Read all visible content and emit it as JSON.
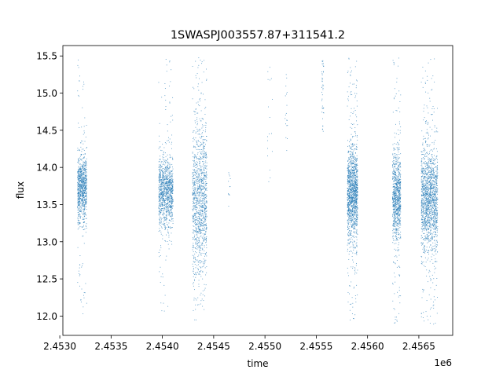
{
  "chart_data": {
    "type": "scatter",
    "title": "1SWASPJ003557.87+311541.2",
    "xlabel": "time",
    "ylabel": "flux",
    "x_offset_label": "1e6",
    "xlim": [
      2.45303,
      2.45683
    ],
    "ylim": [
      11.74,
      15.64
    ],
    "x_ticks": [
      2.453,
      2.4535,
      2.454,
      2.4545,
      2.455,
      2.4555,
      2.456,
      2.4565
    ],
    "x_tick_labels": [
      "2.4530",
      "2.4535",
      "2.4540",
      "2.4545",
      "2.4550",
      "2.4555",
      "2.4560",
      "2.4565"
    ],
    "y_ticks": [
      12.0,
      12.5,
      13.0,
      13.5,
      14.0,
      14.5,
      15.0,
      15.5
    ],
    "y_tick_labels": [
      "12.0",
      "12.5",
      "13.0",
      "13.5",
      "14.0",
      "14.5",
      "15.0",
      "15.5"
    ],
    "grid": false,
    "point_color": "#1f77b4",
    "clusters": [
      {
        "x_range": [
          2.45317,
          2.45326
        ],
        "y_center": 13.72,
        "y_spread": 0.22,
        "y_min": 11.96,
        "y_max": 15.48,
        "density": 900
      },
      {
        "x_range": [
          2.45396,
          2.4541
        ],
        "y_center": 13.68,
        "y_spread": 0.24,
        "y_min": 12.07,
        "y_max": 15.48,
        "density": 1100
      },
      {
        "x_range": [
          2.45429,
          2.45443
        ],
        "y_center": 13.55,
        "y_spread": 0.52,
        "y_min": 11.95,
        "y_max": 15.48,
        "density": 1200
      },
      {
        "x_range": [
          2.45464,
          2.45466
        ],
        "y_center": 13.75,
        "y_spread": 0.18,
        "y_min": 13.42,
        "y_max": 14.06,
        "density": 14
      },
      {
        "x_range": [
          2.45502,
          2.45507
        ],
        "y_center": 14.3,
        "y_spread": 0.9,
        "y_min": 13.68,
        "y_max": 15.45,
        "density": 30
      },
      {
        "x_range": [
          2.45519,
          2.45522
        ],
        "y_center": 14.8,
        "y_spread": 0.5,
        "y_min": 13.96,
        "y_max": 15.27,
        "density": 25
      },
      {
        "x_range": [
          2.45555,
          2.45557
        ],
        "y_center": 15.1,
        "y_spread": 0.22,
        "y_min": 14.48,
        "y_max": 15.48,
        "density": 45
      },
      {
        "x_range": [
          2.4558,
          2.4559
        ],
        "y_center": 13.65,
        "y_spread": 0.32,
        "y_min": 11.92,
        "y_max": 15.48,
        "density": 1400
      },
      {
        "x_range": [
          2.45624,
          2.45632
        ],
        "y_center": 13.62,
        "y_spread": 0.3,
        "y_min": 11.9,
        "y_max": 15.48,
        "density": 900
      },
      {
        "x_range": [
          2.45652,
          2.45668
        ],
        "y_center": 13.58,
        "y_spread": 0.35,
        "y_min": 11.88,
        "y_max": 15.48,
        "density": 1600
      }
    ]
  }
}
